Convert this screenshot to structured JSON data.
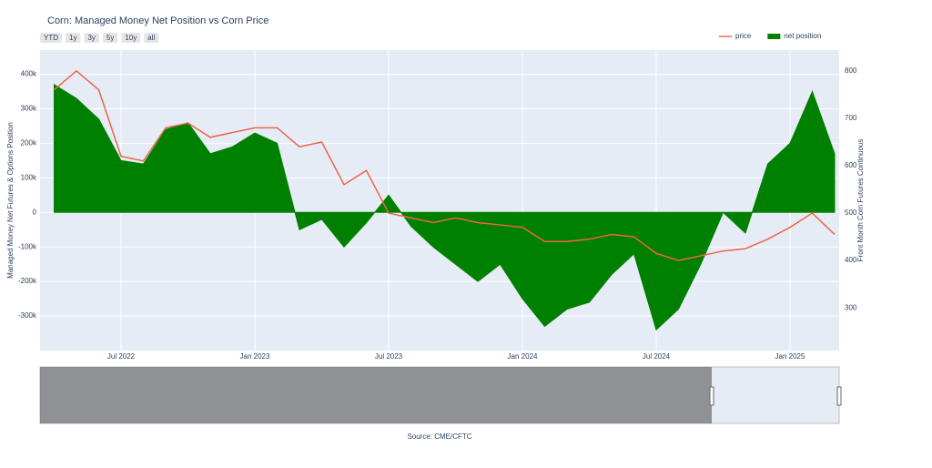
{
  "chart_data": {
    "type": "line",
    "title": "Corn: Managed Money Net Position vs Corn Price",
    "range_buttons": [
      "YTD",
      "1y",
      "3y",
      "5y",
      "10y",
      "all"
    ],
    "x": [
      "Apr 2022",
      "May 2022",
      "Jun 2022",
      "Jul 2022",
      "Aug 2022",
      "Sep 2022",
      "Oct 2022",
      "Nov 2022",
      "Dec 2022",
      "Jan 2023",
      "Feb 2023",
      "Mar 2023",
      "Apr 2023",
      "May 2023",
      "Jun 2023",
      "Jul 2023",
      "Aug 2023",
      "Sep 2023",
      "Oct 2023",
      "Nov 2023",
      "Dec 2023",
      "Jan 2024",
      "Feb 2024",
      "Mar 2024",
      "Apr 2024",
      "May 2024",
      "Jun 2024",
      "Jul 2024",
      "Aug 2024",
      "Sep 2024",
      "Oct 2024",
      "Nov 2024",
      "Dec 2024",
      "Jan 2025",
      "Feb 2025",
      "Mar 2025"
    ],
    "xticks": [
      "Jul 2022",
      "Jan 2023",
      "Jul 2023",
      "Jan 2024",
      "Jul 2024",
      "Jan 2025"
    ],
    "y_label": "Managed Money Net Futures & Options Position",
    "y2_label": "Front Month Corn Futures Continuous",
    "ylim": [
      -400000,
      470000
    ],
    "yticks": [
      {
        "value": -300000,
        "label": "-300k"
      },
      {
        "value": -200000,
        "label": "-200k"
      },
      {
        "value": -100000,
        "label": "-100k"
      },
      0,
      {
        "value": 100000,
        "label": "100k"
      },
      {
        "value": 200000,
        "label": "200k"
      },
      {
        "value": 300000,
        "label": "300k"
      },
      {
        "value": 400000,
        "label": "400k"
      }
    ],
    "y2lim": [
      210,
      844
    ],
    "y2ticks": [
      300,
      400,
      500,
      600,
      700,
      800
    ],
    "grid": true,
    "legend": "top right",
    "series": [
      {
        "name": "price",
        "type": "line",
        "axis": "y2",
        "color": "#ef6548",
        "values": [
          760,
          800,
          760,
          620,
          610,
          680,
          690,
          660,
          670,
          680,
          680,
          640,
          650,
          560,
          590,
          500,
          490,
          480,
          490,
          480,
          475,
          470,
          440,
          440,
          445,
          455,
          450,
          415,
          400,
          410,
          420,
          425,
          445,
          470,
          500,
          455
        ]
      },
      {
        "name": "net position",
        "type": "area",
        "color": "#008000",
        "values": [
          370000,
          330000,
          270000,
          150000,
          140000,
          240000,
          260000,
          170000,
          190000,
          230000,
          200000,
          -50000,
          -20000,
          -100000,
          -30000,
          50000,
          -40000,
          -100000,
          -150000,
          -200000,
          -150000,
          -250000,
          -330000,
          -280000,
          -260000,
          -180000,
          -120000,
          -340000,
          -280000,
          -150000,
          0,
          -60000,
          140000,
          200000,
          350000,
          170000
        ]
      }
    ],
    "source": "Source: CME/CFTC"
  }
}
